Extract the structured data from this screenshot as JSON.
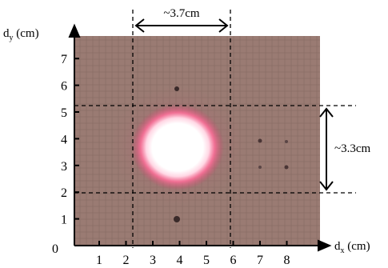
{
  "figure": {
    "y_axis": {
      "label_main": "d",
      "label_sub": "y",
      "label_unit": " (cm)",
      "ticks": [
        "0",
        "1",
        "2",
        "3",
        "4",
        "5",
        "6",
        "7"
      ]
    },
    "x_axis": {
      "label_main": "d",
      "label_sub": "x",
      "label_unit": " (cm)",
      "ticks": [
        "1",
        "2",
        "3",
        "4",
        "5",
        "6",
        "7",
        "8"
      ]
    },
    "width_annotation": "~3.7cm",
    "height_annotation": "~3.3cm",
    "colors": {
      "background": "#9a7b73",
      "spot_core": "#ffffff",
      "spot_glow": "#ff3f7a",
      "grid": "#7d635c",
      "lines": "#000000"
    }
  }
}
